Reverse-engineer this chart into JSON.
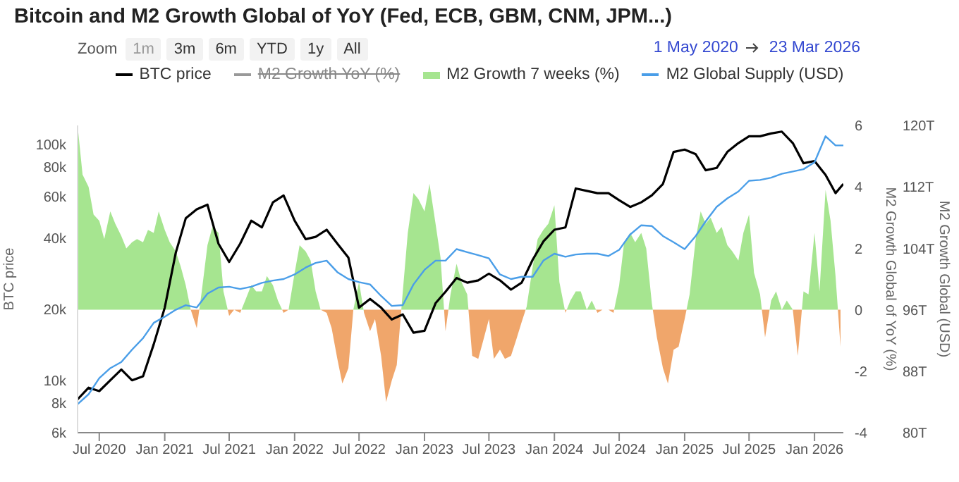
{
  "chart_data": {
    "type": "line",
    "title": "Bitcoin and M2 Growth Global of YoY (Fed, ECB, GBM, CNM, JPM...)",
    "annotations": [
      "Zoom",
      "1m",
      "3m",
      "6m",
      "YTD",
      "1y",
      "All",
      "1 May 2020",
      "23 Mar 2026"
    ],
    "ylabel": "BTC price",
    "y2label": "M2 Growth Global of YoY (%)",
    "y3label": "M2 Growth Global (USD)",
    "legend": "top",
    "log": "y",
    "x": [
      "2020-05-01",
      "2020-06-01",
      "2020-07-01",
      "2020-08-01",
      "2020-09-01",
      "2020-10-01",
      "2020-11-01",
      "2020-12-01",
      "2021-01-01",
      "2021-02-01",
      "2021-03-01",
      "2021-04-01",
      "2021-05-01",
      "2021-06-01",
      "2021-07-01",
      "2021-08-01",
      "2021-09-01",
      "2021-10-01",
      "2021-11-01",
      "2021-12-01",
      "2022-01-01",
      "2022-02-01",
      "2022-03-01",
      "2022-04-01",
      "2022-05-01",
      "2022-06-01",
      "2022-07-01",
      "2022-08-01",
      "2022-09-01",
      "2022-10-01",
      "2022-11-01",
      "2022-12-01",
      "2023-01-01",
      "2023-02-01",
      "2023-03-01",
      "2023-04-01",
      "2023-05-01",
      "2023-06-01",
      "2023-07-01",
      "2023-08-01",
      "2023-09-01",
      "2023-10-01",
      "2023-11-01",
      "2023-12-01",
      "2024-01-01",
      "2024-02-01",
      "2024-03-01",
      "2024-04-01",
      "2024-05-01",
      "2024-06-01",
      "2024-07-01",
      "2024-08-01",
      "2024-09-01",
      "2024-10-01",
      "2024-11-01",
      "2024-12-01",
      "2025-01-01",
      "2025-02-01",
      "2025-03-01",
      "2025-04-01",
      "2025-05-01",
      "2025-06-01",
      "2025-07-01",
      "2025-08-01",
      "2025-09-01",
      "2025-10-01",
      "2025-11-01",
      "2025-12-01",
      "2026-01-01",
      "2026-02-01",
      "2026-03-01",
      "2026-03-23"
    ],
    "xlim": [
      "2020-05-01",
      "2026-03-23"
    ],
    "xticks": [
      {
        "value": "2020-07-01",
        "label": "Jul 2020"
      },
      {
        "value": "2021-01-01",
        "label": "Jan 2021"
      },
      {
        "value": "2021-07-01",
        "label": "Jul 2021"
      },
      {
        "value": "2022-01-01",
        "label": "Jan 2022"
      },
      {
        "value": "2022-07-01",
        "label": "Jul 2022"
      },
      {
        "value": "2023-01-01",
        "label": "Jan 2023"
      },
      {
        "value": "2023-07-01",
        "label": "Jul 2023"
      },
      {
        "value": "2024-01-01",
        "label": "Jan 2024"
      },
      {
        "value": "2024-07-01",
        "label": "Jul 2024"
      },
      {
        "value": "2025-01-01",
        "label": "Jan 2025"
      },
      {
        "value": "2025-07-01",
        "label": "Jul 2025"
      },
      {
        "value": "2026-01-01",
        "label": "Jan 2026"
      }
    ],
    "ylim": [
      6000,
      120000
    ],
    "yticks": [
      {
        "value": 6000,
        "label": "6k"
      },
      {
        "value": 8000,
        "label": "8k"
      },
      {
        "value": 10000,
        "label": "10k"
      },
      {
        "value": 20000,
        "label": "20k"
      },
      {
        "value": 40000,
        "label": "40k"
      },
      {
        "value": 60000,
        "label": "60k"
      },
      {
        "value": 80000,
        "label": "80k"
      },
      {
        "value": 100000,
        "label": "100k"
      }
    ],
    "y2lim": [
      -4,
      6
    ],
    "y2ticks": [
      -4,
      -2,
      0,
      2,
      4,
      6
    ],
    "y3lim": [
      80,
      120
    ],
    "y3ticks": [
      {
        "value": 80,
        "label": "80T"
      },
      {
        "value": 88,
        "label": "88T"
      },
      {
        "value": 96,
        "label": "96T"
      },
      {
        "value": 104,
        "label": "104T"
      },
      {
        "value": 112,
        "label": "112T"
      },
      {
        "value": 120,
        "label": "120T"
      }
    ],
    "series": [
      {
        "name": "BTC price",
        "color": "#000000",
        "values": [
          8300,
          9300,
          9000,
          10000,
          11100,
          10000,
          10400,
          14200,
          20300,
          34700,
          48500,
          53000,
          55400,
          37900,
          31700,
          37900,
          47400,
          44400,
          56700,
          60600,
          47400,
          39600,
          40500,
          43400,
          37900,
          33100,
          20300,
          22100,
          20300,
          18100,
          19000,
          15900,
          16200,
          21200,
          23700,
          27100,
          25900,
          26500,
          28300,
          26500,
          24200,
          25900,
          32400,
          38700,
          43400,
          44400,
          64900,
          63400,
          62000,
          62000,
          57900,
          54200,
          56700,
          60700,
          67800,
          92700,
          94800,
          90700,
          77500,
          79300,
          92700,
          101000,
          108000,
          108000,
          111000,
          113000,
          101000,
          83000,
          84800,
          74100,
          62000,
          67800
        ]
      },
      {
        "name": "M2 Growth YoY (%)",
        "color": "#999999",
        "axis": "y2",
        "values": [
          null,
          null,
          null,
          null,
          null,
          null,
          null,
          null,
          null,
          null,
          null,
          null,
          null,
          null,
          null,
          null,
          null,
          null,
          null,
          null,
          null,
          null,
          null,
          null,
          null,
          null,
          null,
          null,
          null,
          null,
          null,
          null,
          null,
          null,
          null,
          null,
          null,
          null,
          null,
          null,
          null,
          null,
          null,
          null,
          null,
          null,
          null,
          null,
          null,
          null,
          null,
          null,
          null,
          null,
          null,
          null,
          null,
          null,
          null,
          null,
          null,
          null,
          null,
          null,
          null,
          null,
          null,
          null,
          null,
          null,
          null,
          null
        ]
      },
      {
        "name": "M2 Growth 7 weeks (%)",
        "type": "area",
        "color": "#a6e590",
        "axis": "y2",
        "x": [
          "2020-05-01",
          "2020-05-15",
          "2020-06-01",
          "2020-06-15",
          "2020-07-01",
          "2020-07-15",
          "2020-08-01",
          "2020-08-15",
          "2020-09-01",
          "2020-09-15",
          "2020-10-01",
          "2020-10-15",
          "2020-11-01",
          "2020-11-15",
          "2020-12-01",
          "2020-12-15",
          "2021-01-01",
          "2021-01-15",
          "2021-02-01",
          "2021-02-15",
          "2021-03-01",
          "2021-03-15",
          "2021-04-01",
          "2021-04-15",
          "2021-05-01",
          "2021-05-15",
          "2021-06-01",
          "2021-06-15",
          "2021-07-01",
          "2021-07-15",
          "2021-08-01",
          "2021-08-15",
          "2021-09-01",
          "2021-09-15",
          "2021-10-01",
          "2021-10-15",
          "2021-11-01",
          "2021-11-15",
          "2021-12-01",
          "2021-12-15",
          "2022-01-01",
          "2022-01-15",
          "2022-02-01",
          "2022-02-15",
          "2022-03-01",
          "2022-03-15",
          "2022-04-01",
          "2022-04-15",
          "2022-05-01",
          "2022-05-15",
          "2022-06-01",
          "2022-06-15",
          "2022-07-01",
          "2022-07-15",
          "2022-08-01",
          "2022-08-15",
          "2022-09-01",
          "2022-09-15",
          "2022-10-01",
          "2022-10-15",
          "2022-11-01",
          "2022-11-15",
          "2022-12-01",
          "2022-12-15",
          "2023-01-01",
          "2023-01-15",
          "2023-02-01",
          "2023-02-15",
          "2023-03-01",
          "2023-03-15",
          "2023-04-01",
          "2023-04-15",
          "2023-05-01",
          "2023-05-15",
          "2023-06-01",
          "2023-06-15",
          "2023-07-01",
          "2023-07-15",
          "2023-08-01",
          "2023-08-15",
          "2023-09-01",
          "2023-09-15",
          "2023-10-01",
          "2023-10-15",
          "2023-11-01",
          "2023-11-15",
          "2023-12-01",
          "2023-12-15",
          "2024-01-01",
          "2024-01-15",
          "2024-02-01",
          "2024-02-15",
          "2024-03-01",
          "2024-03-15",
          "2024-04-01",
          "2024-04-15",
          "2024-05-01",
          "2024-05-15",
          "2024-06-01",
          "2024-06-15",
          "2024-07-01",
          "2024-07-15",
          "2024-08-01",
          "2024-08-15",
          "2024-09-01",
          "2024-09-15",
          "2024-10-01",
          "2024-10-15",
          "2024-11-01",
          "2024-11-15",
          "2024-12-01",
          "2024-12-15",
          "2025-01-01",
          "2025-01-15",
          "2025-02-01",
          "2025-02-15",
          "2025-03-01",
          "2025-03-15",
          "2025-04-01",
          "2025-04-15",
          "2025-05-01",
          "2025-05-15",
          "2025-06-01",
          "2025-06-15",
          "2025-07-01",
          "2025-07-15",
          "2025-08-01",
          "2025-08-15",
          "2025-09-01",
          "2025-09-15",
          "2025-10-01",
          "2025-10-15",
          "2025-11-01",
          "2025-11-15",
          "2025-12-01",
          "2025-12-15",
          "2026-01-01",
          "2026-01-15",
          "2026-02-01",
          "2026-02-15",
          "2026-03-01",
          "2026-03-15"
        ],
        "values": [
          6.0,
          4.4,
          4.0,
          3.1,
          2.9,
          2.3,
          3.2,
          2.8,
          2.4,
          2.0,
          2.2,
          2.3,
          2.2,
          2.6,
          2.5,
          3.2,
          2.6,
          2.2,
          1.9,
          1.4,
          0.8,
          0.0,
          -0.6,
          0.6,
          2.1,
          2.7,
          2.5,
          0.6,
          -0.2,
          0.0,
          -0.1,
          0.3,
          0.8,
          0.6,
          0.6,
          1.1,
          0.8,
          0.3,
          -0.1,
          0.0,
          1.2,
          2.1,
          1.9,
          1.6,
          0.6,
          0.0,
          -0.1,
          -0.6,
          -1.6,
          -2.4,
          -1.9,
          0.0,
          0.9,
          -0.1,
          -0.7,
          -0.3,
          -1.5,
          -3.0,
          -2.3,
          -1.8,
          0.6,
          2.5,
          3.8,
          3.6,
          3.2,
          4.1,
          2.8,
          1.7,
          -0.7,
          0.5,
          1.5,
          0.9,
          0.5,
          -1.5,
          -1.6,
          -1.0,
          -0.3,
          -1.6,
          -1.3,
          -1.6,
          -1.5,
          -1.0,
          -0.4,
          0.1,
          1.4,
          2.3,
          2.6,
          2.8,
          3.4,
          0.9,
          -0.1,
          0.3,
          0.6,
          0.6,
          0.0,
          0.3,
          -0.1,
          0.0,
          0.0,
          -0.1,
          0.8,
          2.2,
          2.5,
          2.2,
          2.5,
          2.0,
          0.2,
          -0.9,
          -1.9,
          -2.4,
          -1.3,
          -1.2,
          -0.3,
          0.5,
          2.3,
          3.2,
          2.8,
          3.0,
          2.5,
          2.7,
          2.1,
          1.9,
          1.6,
          2.5,
          3.1,
          1.2,
          0.5,
          -0.9,
          0.3,
          0.6,
          0.0,
          0.3,
          0.0,
          -1.5,
          0.6,
          0.5,
          2.5,
          0.6,
          3.9,
          2.9,
          1.1,
          -1.2
        ],
        "colors": [
          "#a6e590",
          "#a6e590",
          "#a6e590",
          "#a6e590",
          "#a6e590",
          "#a6e590",
          "#a6e590",
          "#a6e590",
          "#a6e590",
          "#a6e590",
          "#a6e590",
          "#a6e590",
          "#a6e590",
          "#a6e590",
          "#a6e590",
          "#a6e590",
          "#a6e590",
          "#a6e590",
          "#a6e590",
          "#a6e590",
          "#a6e590",
          "#a6e590",
          "#f0a66b",
          "#a6e590",
          "#a6e590",
          "#a6e590",
          "#a6e590",
          "#a6e590",
          "#f0a66b",
          "#a6e590",
          "#f0a66b",
          "#a6e590",
          "#a6e590",
          "#a6e590",
          "#a6e590",
          "#a6e590",
          "#a6e590",
          "#a6e590",
          "#f0a66b",
          "#a6e590",
          "#a6e590",
          "#a6e590",
          "#a6e590",
          "#a6e590",
          "#a6e590",
          "#a6e590",
          "#f0a66b",
          "#f0a66b",
          "#f0a66b",
          "#f0a66b",
          "#f0a66b",
          "#a6e590",
          "#a6e590",
          "#f0a66b",
          "#f0a66b",
          "#f0a66b",
          "#f0a66b",
          "#f0a66b",
          "#f0a66b",
          "#f0a66b",
          "#a6e590",
          "#a6e590",
          "#a6e590",
          "#a6e590",
          "#a6e590",
          "#a6e590",
          "#a6e590",
          "#a6e590",
          "#f0a66b",
          "#a6e590",
          "#a6e590",
          "#a6e590",
          "#a6e590",
          "#f0a66b",
          "#f0a66b",
          "#f0a66b",
          "#f0a66b",
          "#f0a66b",
          "#f0a66b",
          "#f0a66b",
          "#f0a66b",
          "#f0a66b",
          "#f0a66b",
          "#a6e590",
          "#a6e590",
          "#a6e590",
          "#a6e590",
          "#a6e590",
          "#a6e590",
          "#a6e590",
          "#f0a66b",
          "#a6e590",
          "#a6e590",
          "#a6e590",
          "#a6e590",
          "#a6e590",
          "#f0a66b",
          "#a6e590",
          "#a6e590",
          "#f0a66b",
          "#a6e590",
          "#a6e590",
          "#a6e590",
          "#a6e590",
          "#a6e590",
          "#a6e590",
          "#a6e590",
          "#f0a66b",
          "#f0a66b",
          "#f0a66b",
          "#f0a66b",
          "#f0a66b",
          "#f0a66b",
          "#a6e590",
          "#a6e590",
          "#a6e590",
          "#a6e590",
          "#a6e590",
          "#a6e590",
          "#a6e590",
          "#a6e590",
          "#a6e590",
          "#a6e590",
          "#a6e590",
          "#a6e590",
          "#a6e590",
          "#a6e590",
          "#f0a66b",
          "#a6e590",
          "#a6e590",
          "#a6e590",
          "#a6e590",
          "#a6e590",
          "#f0a66b",
          "#a6e590",
          "#a6e590",
          "#a6e590",
          "#a6e590",
          "#a6e590",
          "#a6e590",
          "#a6e590",
          "#f0a66b"
        ]
      },
      {
        "name": "M2 Global Supply (USD)",
        "color": "#4a9ee8",
        "axis": "y3",
        "values": [
          83.7,
          85.0,
          87.1,
          88.4,
          89.2,
          90.8,
          92.3,
          94.3,
          95.1,
          96.0,
          96.6,
          96.3,
          98.1,
          98.9,
          99.0,
          98.7,
          99.0,
          99.5,
          99.8,
          100.0,
          100.6,
          101.5,
          102.1,
          102.4,
          100.9,
          100.0,
          99.6,
          99.3,
          97.8,
          96.5,
          96.6,
          99.3,
          101.2,
          102.4,
          102.4,
          103.9,
          103.5,
          103.1,
          102.7,
          100.6,
          100.0,
          100.3,
          100.3,
          102.4,
          103.3,
          102.9,
          103.2,
          103.3,
          103.3,
          103.0,
          103.8,
          105.8,
          107.0,
          106.9,
          105.6,
          104.8,
          103.9,
          105.6,
          107.5,
          109.4,
          110.5,
          111.4,
          112.8,
          112.9,
          113.2,
          113.7,
          114.0,
          114.3,
          115.2,
          118.6,
          117.4,
          117.4
        ]
      }
    ]
  }
}
